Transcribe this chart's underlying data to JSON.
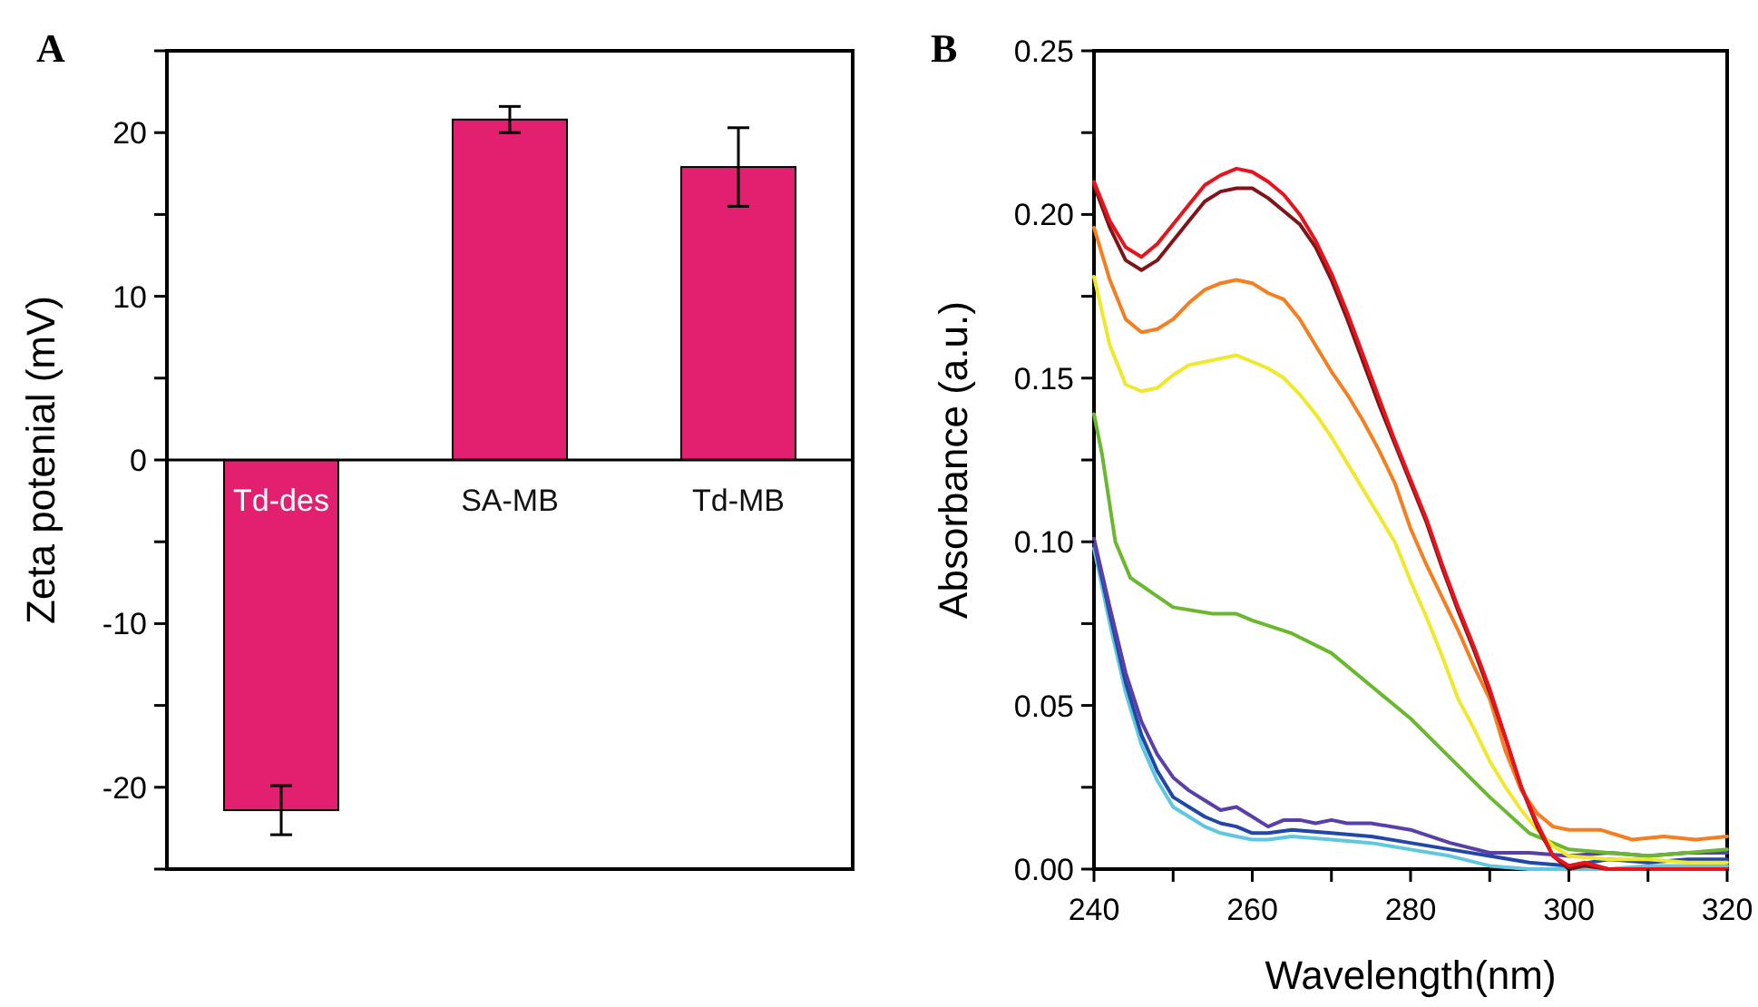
{
  "chart_data": [
    {
      "type": "bar",
      "annotations": [
        "A"
      ],
      "ylabel": "Zeta potenial (mV)",
      "categories": [
        "Td-des",
        "SA-MB",
        "Td-MB"
      ],
      "values": [
        -21.4,
        20.8,
        17.9
      ],
      "errors": [
        1.5,
        0.8,
        2.4
      ],
      "color": "#e3206f",
      "ylim": [
        -25,
        25
      ],
      "yticks": [
        {
          "value": -25,
          "label": null
        },
        -20,
        {
          "value": -15,
          "label": null
        },
        -10,
        {
          "value": -5,
          "label": null
        },
        0,
        {
          "value": 5,
          "label": null
        },
        10,
        {
          "value": 15,
          "label": null
        },
        20,
        {
          "value": 25,
          "label": null
        }
      ]
    },
    {
      "type": "line",
      "annotations": [
        "B"
      ],
      "xlabel": "Wavelength(nm)",
      "ylabel": "Absorbance (a.u.)",
      "xlim": [
        240,
        320
      ],
      "ylim": [
        0,
        0.25
      ],
      "xticks": [
        240,
        {
          "value": 250,
          "label": null
        },
        260,
        {
          "value": 270,
          "label": null
        },
        280,
        {
          "value": 290,
          "label": null
        },
        300,
        {
          "value": 310,
          "label": null
        },
        320
      ],
      "yticks": [
        "0.00",
        {
          "value": 0.025,
          "label": null
        },
        {
          "value": 0.05,
          "label": "0.05"
        },
        {
          "value": 0.075,
          "label": null
        },
        {
          "value": 0.1,
          "label": "0.10"
        },
        {
          "value": 0.125,
          "label": null
        },
        {
          "value": 0.15,
          "label": "0.15"
        },
        {
          "value": 0.175,
          "label": null
        },
        {
          "value": 0.2,
          "label": "0.20"
        },
        {
          "value": 0.225,
          "label": null
        },
        {
          "value": 0.25,
          "label": "0.25"
        }
      ],
      "series": [
        {
          "color": "#5ec8e0",
          "x": [
            240,
            242,
            244,
            246,
            248,
            250,
            252,
            254,
            256,
            258,
            260,
            262,
            265,
            270,
            275,
            280,
            285,
            290,
            295,
            300,
            305,
            310,
            315,
            320
          ],
          "values": [
            0.098,
            0.075,
            0.054,
            0.038,
            0.027,
            0.019,
            0.016,
            0.013,
            0.011,
            0.01,
            0.009,
            0.009,
            0.01,
            0.009,
            0.008,
            0.006,
            0.004,
            0.001,
            0.0,
            0.0,
            0.0,
            0.001,
            0.001,
            0.001
          ]
        },
        {
          "color": "#2148a8",
          "x": [
            240,
            242,
            244,
            246,
            248,
            250,
            252,
            254,
            256,
            258,
            260,
            262,
            265,
            270,
            275,
            280,
            285,
            290,
            295,
            300,
            305,
            310,
            315,
            320
          ],
          "values": [
            0.1,
            0.078,
            0.057,
            0.041,
            0.03,
            0.022,
            0.019,
            0.016,
            0.014,
            0.013,
            0.011,
            0.011,
            0.012,
            0.011,
            0.01,
            0.008,
            0.006,
            0.004,
            0.002,
            0.001,
            0.003,
            0.002,
            0.003,
            0.003
          ]
        },
        {
          "color": "#5b3fa8",
          "x": [
            240,
            242,
            244,
            246,
            248,
            250,
            252,
            254,
            256,
            258,
            260,
            262,
            264,
            266,
            268,
            270,
            272,
            275,
            280,
            285,
            290,
            295,
            300,
            305,
            310,
            315,
            320
          ],
          "values": [
            0.101,
            0.08,
            0.06,
            0.045,
            0.035,
            0.028,
            0.024,
            0.021,
            0.018,
            0.019,
            0.016,
            0.013,
            0.015,
            0.015,
            0.014,
            0.015,
            0.014,
            0.014,
            0.012,
            0.008,
            0.005,
            0.005,
            0.004,
            0.005,
            0.004,
            0.005,
            0.005
          ]
        },
        {
          "color": "#6ab82e",
          "x": [
            240,
            241,
            242.7,
            244.6,
            250,
            255,
            258,
            260,
            265,
            270,
            275,
            280,
            285,
            290,
            295,
            300,
            305,
            310,
            315,
            320
          ],
          "values": [
            0.139,
            0.127,
            0.1,
            0.089,
            0.08,
            0.078,
            0.078,
            0.076,
            0.072,
            0.066,
            0.056,
            0.046,
            0.034,
            0.022,
            0.011,
            0.006,
            0.005,
            0.004,
            0.005,
            0.006
          ]
        },
        {
          "color": "#f0e82a",
          "x": [
            240,
            242,
            244,
            246,
            248,
            250,
            252,
            254,
            256,
            258,
            260,
            262,
            264,
            266,
            268,
            270,
            272,
            274,
            276,
            278,
            280,
            282,
            284,
            286,
            288,
            290,
            292,
            294,
            296,
            298,
            300,
            305,
            310,
            315,
            320
          ],
          "values": [
            0.181,
            0.16,
            0.148,
            0.146,
            0.147,
            0.151,
            0.154,
            0.155,
            0.156,
            0.157,
            0.155,
            0.153,
            0.15,
            0.145,
            0.139,
            0.132,
            0.124,
            0.116,
            0.108,
            0.1,
            0.088,
            0.077,
            0.065,
            0.052,
            0.043,
            0.033,
            0.025,
            0.018,
            0.012,
            0.007,
            0.004,
            0.003,
            0.003,
            0.002,
            0.002
          ]
        },
        {
          "color": "#f57f20",
          "x": [
            240,
            242,
            244,
            246,
            248,
            250,
            252,
            254,
            256,
            258,
            260,
            262,
            264,
            266,
            268,
            270,
            272,
            274,
            276,
            278,
            280,
            282,
            284,
            286,
            288,
            290,
            292,
            294,
            296,
            298,
            300,
            304,
            308,
            312,
            316,
            320
          ],
          "values": [
            0.196,
            0.18,
            0.168,
            0.164,
            0.165,
            0.168,
            0.173,
            0.177,
            0.179,
            0.18,
            0.179,
            0.176,
            0.174,
            0.168,
            0.16,
            0.152,
            0.145,
            0.137,
            0.128,
            0.118,
            0.104,
            0.093,
            0.083,
            0.073,
            0.062,
            0.052,
            0.036,
            0.024,
            0.017,
            0.013,
            0.012,
            0.012,
            0.009,
            0.01,
            0.009,
            0.01
          ]
        },
        {
          "color": "#7f1518",
          "x": [
            240,
            242,
            244,
            246,
            248,
            250,
            252,
            254,
            256,
            258,
            260,
            262,
            264,
            266,
            268,
            270,
            272,
            274,
            276,
            278,
            280,
            282,
            284,
            286,
            288,
            290,
            292,
            294,
            296,
            298,
            300,
            302,
            305,
            308,
            312,
            316,
            320
          ],
          "values": [
            0.209,
            0.196,
            0.186,
            0.183,
            0.186,
            0.192,
            0.198,
            0.204,
            0.207,
            0.208,
            0.208,
            0.205,
            0.201,
            0.197,
            0.19,
            0.18,
            0.168,
            0.155,
            0.142,
            0.13,
            0.118,
            0.106,
            0.092,
            0.079,
            0.067,
            0.054,
            0.04,
            0.025,
            0.013,
            0.004,
            0.0,
            0.001,
            0.0,
            0.0,
            0.0,
            0.0,
            0.0
          ]
        },
        {
          "color": "#e8141c",
          "x": [
            240,
            242,
            244,
            246,
            248,
            250,
            252,
            254,
            256,
            258,
            260,
            262,
            264,
            266,
            268,
            270,
            272,
            274,
            276,
            278,
            280,
            282,
            284,
            286,
            288,
            290,
            292,
            294,
            296,
            298,
            300,
            302,
            305,
            308,
            312,
            316,
            320
          ],
          "values": [
            0.21,
            0.198,
            0.19,
            0.187,
            0.191,
            0.197,
            0.203,
            0.209,
            0.212,
            0.214,
            0.213,
            0.21,
            0.206,
            0.2,
            0.192,
            0.182,
            0.17,
            0.157,
            0.144,
            0.131,
            0.119,
            0.107,
            0.093,
            0.08,
            0.068,
            0.055,
            0.04,
            0.025,
            0.014,
            0.004,
            0.001,
            0.002,
            0.0,
            0.0,
            0.0,
            0.0,
            0.0
          ]
        }
      ]
    }
  ]
}
